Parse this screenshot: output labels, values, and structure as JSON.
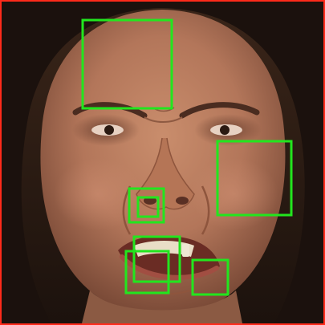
{
  "image": {
    "subject": "face",
    "expression": "disgust"
  },
  "colors": {
    "frame_border": "#ff2a1a",
    "box_stroke": "#22e61e",
    "skin": "#b7785a",
    "hair": "#1b110d",
    "background": "#2a1a12"
  },
  "regions": [
    {
      "label": "forehead"
    },
    {
      "label": "right-cheek"
    },
    {
      "label": "nose-tip-outer"
    },
    {
      "label": "nose-tip-inner"
    },
    {
      "label": "upper-lip"
    },
    {
      "label": "mouth-left"
    },
    {
      "label": "chin-right"
    }
  ]
}
